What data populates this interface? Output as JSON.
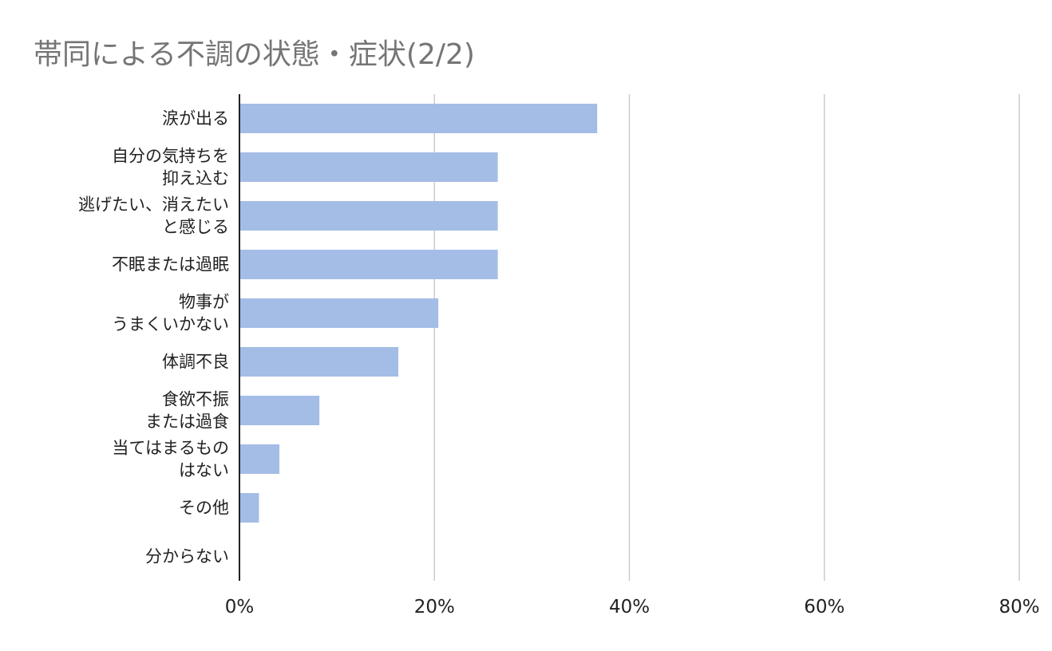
{
  "chart_data": {
    "type": "bar",
    "orientation": "horizontal",
    "title": "帯同による不調の状態・症状(2/2)",
    "categories": [
      [
        "涙が出る"
      ],
      [
        "自分の気持ちを",
        "抑え込む"
      ],
      [
        "逃げたい、消えたい",
        "と感じる"
      ],
      [
        "不眠または過眠"
      ],
      [
        "物事が",
        "うまくいかない"
      ],
      [
        "体調不良"
      ],
      [
        "食欲不振",
        "または過食"
      ],
      [
        "当てはまるもの",
        "はない"
      ],
      [
        "その他"
      ],
      [
        "分からない"
      ]
    ],
    "values": [
      36.7,
      26.5,
      26.5,
      26.5,
      20.4,
      16.3,
      8.2,
      4.1,
      2.0,
      0
    ],
    "xlim": [
      0,
      80
    ],
    "xticks": [
      "0%",
      "20%",
      "40%",
      "60%",
      "80%"
    ],
    "xtick_values": [
      0,
      20,
      40,
      60,
      80
    ],
    "grid": true,
    "legend": "none",
    "colors": {
      "bar": "#a4bde6",
      "grid": "#cccccc",
      "axis": "#222222",
      "title": "#757575"
    }
  }
}
